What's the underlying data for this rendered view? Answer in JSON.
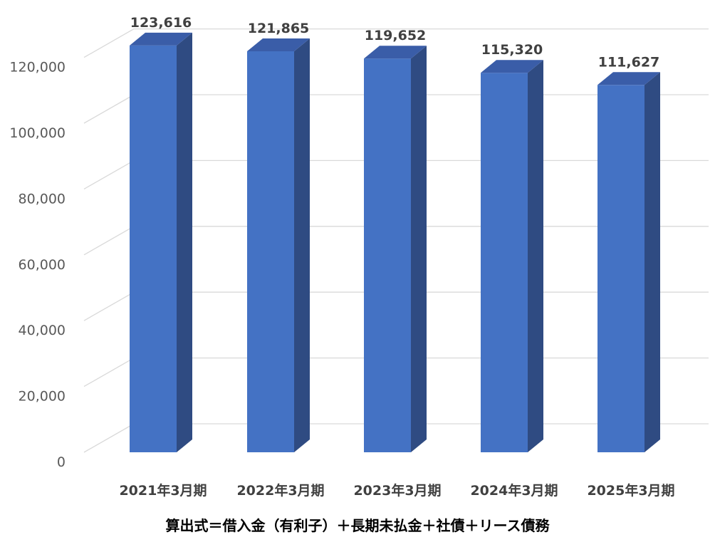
{
  "chart_data": {
    "type": "bar",
    "style": "3d-column",
    "categories": [
      "2021年3月期",
      "2022年3月期",
      "2023年3月期",
      "2024年3月期",
      "2025年3月期"
    ],
    "values": [
      123616,
      121865,
      119652,
      115320,
      111627
    ],
    "value_labels": [
      "123,616",
      "121,865",
      "119,652",
      "115,320",
      "111,627"
    ],
    "y_ticks": [
      "0",
      "20,000",
      "40,000",
      "60,000",
      "80,000",
      "100,000",
      "120,000"
    ],
    "ylim": [
      0,
      120000
    ],
    "grid": true,
    "legend": "none",
    "bar_color": "#4472C4",
    "bar_side_color": "#2F4B82",
    "bar_top_color": "#3A5DA8",
    "gridline_color": "#D9D9D9"
  },
  "caption": "算出式＝借入金（有利子）＋長期未払金＋社債＋リース債務"
}
